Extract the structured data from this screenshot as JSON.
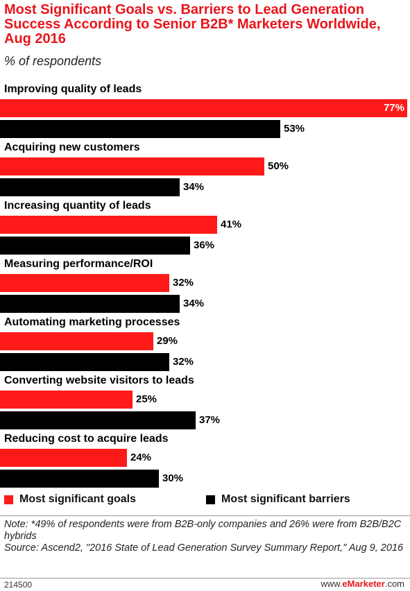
{
  "header": {
    "title": "Most Significant Goals vs. Barriers to Lead Generation Success According to Senior B2B* Marketers Worldwide, Aug 2016",
    "subtitle": "% of respondents"
  },
  "colors": {
    "goals": "#ff1a1a",
    "barriers": "#000000",
    "title": "#e8151c"
  },
  "chart_data": {
    "type": "bar",
    "orientation": "horizontal",
    "title": "Most Significant Goals vs. Barriers to Lead Generation Success According to Senior B2B* Marketers Worldwide, Aug 2016",
    "subtitle": "% of respondents",
    "categories": [
      "Improving quality of leads",
      "Acquiring new customers",
      "Increasing quantity of leads",
      "Measuring performance/ROI",
      "Automating marketing processes",
      "Converting website visitors to leads",
      "Reducing cost to acquire leads"
    ],
    "series": [
      {
        "name": "Most significant goals",
        "color": "#ff1a1a",
        "values": [
          77,
          50,
          41,
          32,
          29,
          25,
          24
        ]
      },
      {
        "name": "Most significant barriers",
        "color": "#000000",
        "values": [
          53,
          34,
          36,
          34,
          32,
          37,
          30
        ]
      }
    ],
    "value_suffix": "%",
    "legend": "bottom",
    "grid": false
  },
  "footer": {
    "note": "Note: *49% of respondents were from B2B-only companies and 26% were from B2B/B2C hybrids",
    "source": "Source: Ascend2, \"2016 State of Lead Generation Survey Summary Report,\" Aug 9, 2016",
    "chart_id": "214500",
    "brand_prefix": "www.",
    "brand_name": "eMarketer",
    "brand_suffix": ".com"
  }
}
